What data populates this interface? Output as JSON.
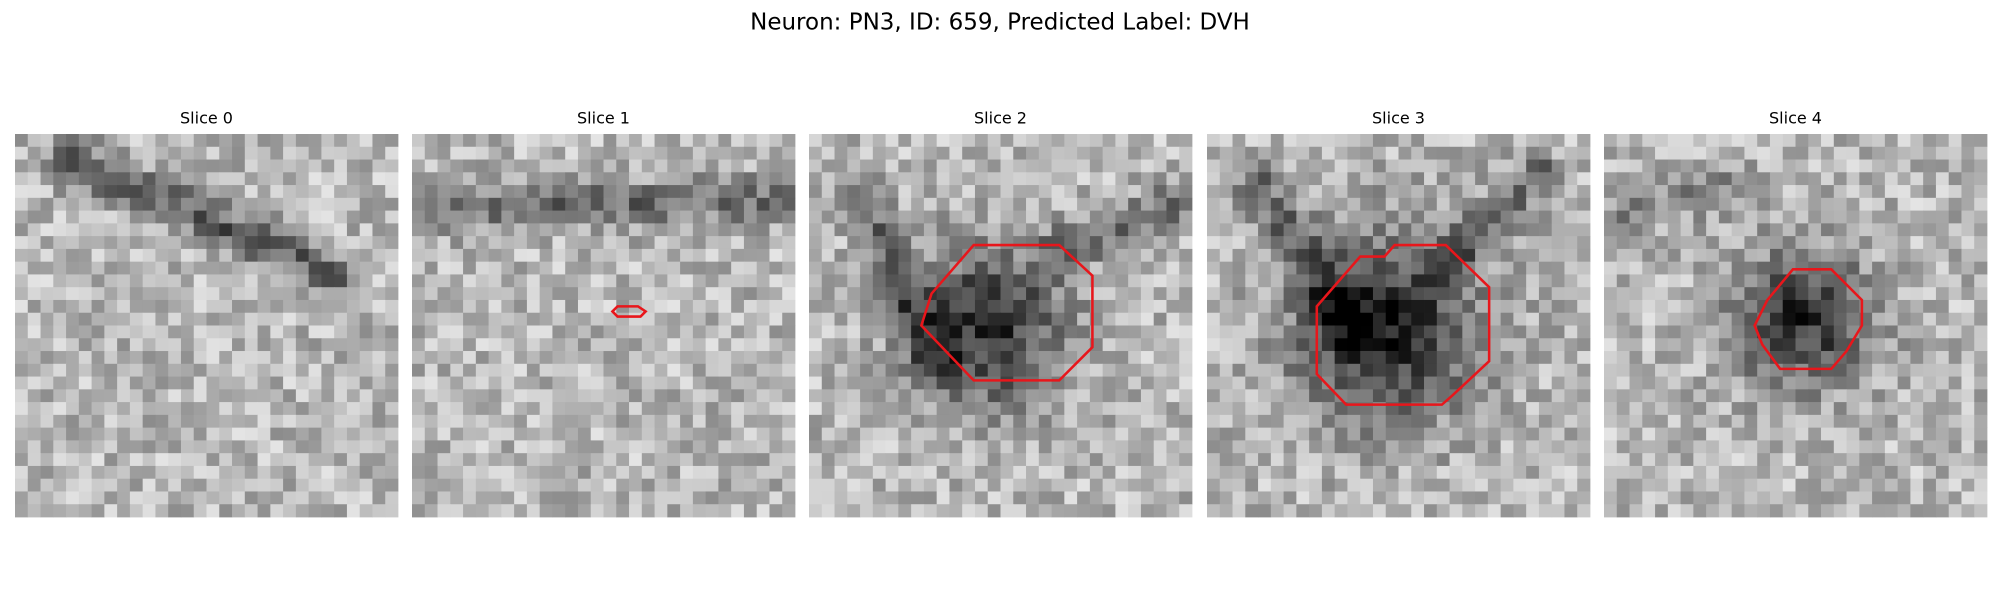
{
  "title": "Neuron: PN3, ID: 659, Predicted Label: DVH",
  "panels": [
    {
      "title": "Slice 0"
    },
    {
      "title": "Slice 1"
    },
    {
      "title": "Slice 2"
    },
    {
      "title": "Slice 3"
    },
    {
      "title": "Slice 4"
    }
  ]
}
